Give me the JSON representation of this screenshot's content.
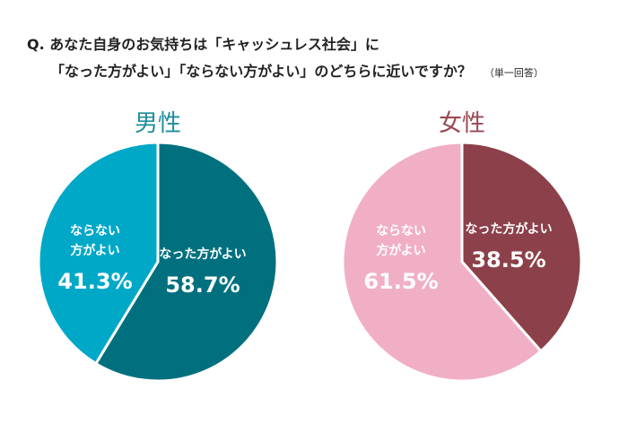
{
  "question": {
    "line1": "Q. あなた自身のお気持ちは「キャッシュレス社会」に",
    "line2": "「なった方がよい」「ならない方がよい」のどちらに近いですか？",
    "note": "（単一回答）"
  },
  "chart_data": [
    {
      "type": "pie",
      "title": "男性",
      "title_color": "#1f8d9c",
      "start": "top",
      "direction": "clockwise",
      "slices": [
        {
          "label": "なった方がよい",
          "value": 58.7,
          "value_label": "58.7%",
          "color": "#00707e"
        },
        {
          "label": "ならない方がよい",
          "label_lines": [
            "ならない",
            "方がよい"
          ],
          "value": 41.3,
          "value_label": "41.3%",
          "color": "#00a8c8"
        }
      ]
    },
    {
      "type": "pie",
      "title": "女性",
      "title_color": "#9a4855",
      "start": "top",
      "direction": "clockwise",
      "slices": [
        {
          "label": "なった方がよい",
          "value": 38.5,
          "value_label": "38.5%",
          "color": "#8c4049"
        },
        {
          "label": "ならない方がよい",
          "label_lines": [
            "ならない",
            "方がよい"
          ],
          "value": 61.5,
          "value_label": "61.5%",
          "color": "#f1afc6"
        }
      ]
    }
  ]
}
